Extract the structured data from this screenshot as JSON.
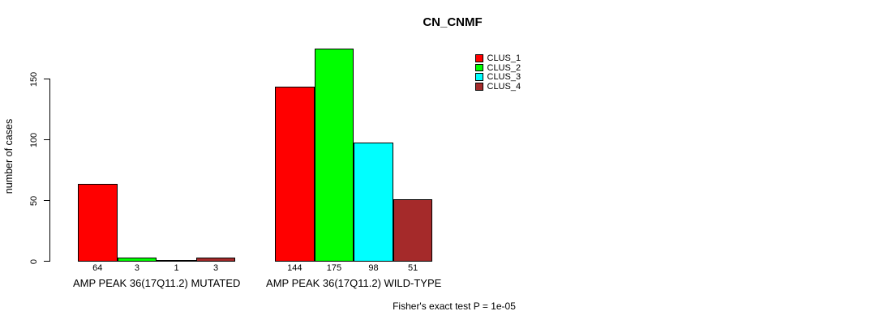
{
  "chart_data": {
    "type": "bar",
    "title": "CN_CNMF",
    "ylabel": "number of cases",
    "footer": "Fisher's exact test P = 1e-05",
    "yticks": [
      0,
      50,
      100,
      150
    ],
    "ylim": [
      0,
      175
    ],
    "grid": false,
    "legend_position": "top-right-inside",
    "bar_values_shown": true,
    "series": [
      {
        "name": "CLUS_1",
        "color": "#ff0000"
      },
      {
        "name": "CLUS_2",
        "color": "#00ff00"
      },
      {
        "name": "CLUS_3",
        "color": "#00ffff"
      },
      {
        "name": "CLUS_4",
        "color": "#a52a2a"
      }
    ],
    "groups": [
      {
        "label": "AMP PEAK 36(17Q11.2) MUTATED",
        "values": [
          64,
          3,
          1,
          3
        ]
      },
      {
        "label": "AMP PEAK 36(17Q11.2) WILD-TYPE",
        "values": [
          144,
          175,
          98,
          51
        ]
      }
    ]
  }
}
